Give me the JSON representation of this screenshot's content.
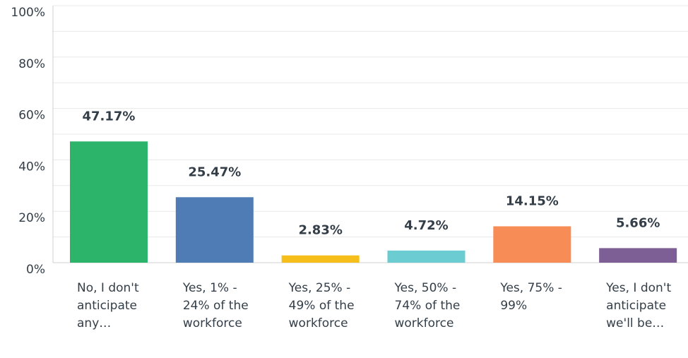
{
  "chart_data": {
    "type": "bar",
    "categories": [
      "No, I don't anticipate any…",
      "Yes, 1% - 24% of the workforce",
      "Yes, 25% - 49% of the workforce",
      "Yes, 50% - 74% of the workforce",
      "Yes, 75% - 99%",
      "Yes, I don't anticipate we'll be…"
    ],
    "values": [
      47.17,
      25.47,
      2.83,
      4.72,
      14.15,
      5.66
    ],
    "value_labels": [
      "47.17%",
      "25.47%",
      "2.83%",
      "4.72%",
      "14.15%",
      "5.66%"
    ],
    "colors": [
      "#2db46b",
      "#507cb6",
      "#f6be1a",
      "#6bccd1",
      "#f78c57",
      "#7d5e95"
    ],
    "ylim": [
      0,
      100
    ],
    "yticks": [
      {
        "value": 0,
        "label": "0%"
      },
      {
        "value": 20,
        "label": "20%"
      },
      {
        "value": 40,
        "label": "40%"
      },
      {
        "value": 60,
        "label": "60%"
      },
      {
        "value": 80,
        "label": "80%"
      },
      {
        "value": 100,
        "label": "100%"
      }
    ],
    "minor_yticks": [
      10,
      30,
      50,
      70,
      90
    ],
    "grid": true
  }
}
